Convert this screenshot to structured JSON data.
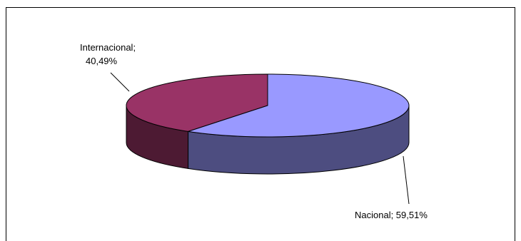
{
  "chart_data": {
    "type": "pie",
    "style": "3d",
    "title": "",
    "slices": [
      {
        "label": "Nacional",
        "value": 59.51,
        "value_text": "59,51%",
        "color": "#9999ff"
      },
      {
        "label": "Internacional",
        "value": 40.49,
        "value_text": "40,49%",
        "color": "#993366"
      }
    ],
    "data_labels": {
      "nacional": "Nacional; 59,51%",
      "internacional_line1": "Internacional;",
      "internacional_line2": "40,49%"
    },
    "legend": "none"
  }
}
